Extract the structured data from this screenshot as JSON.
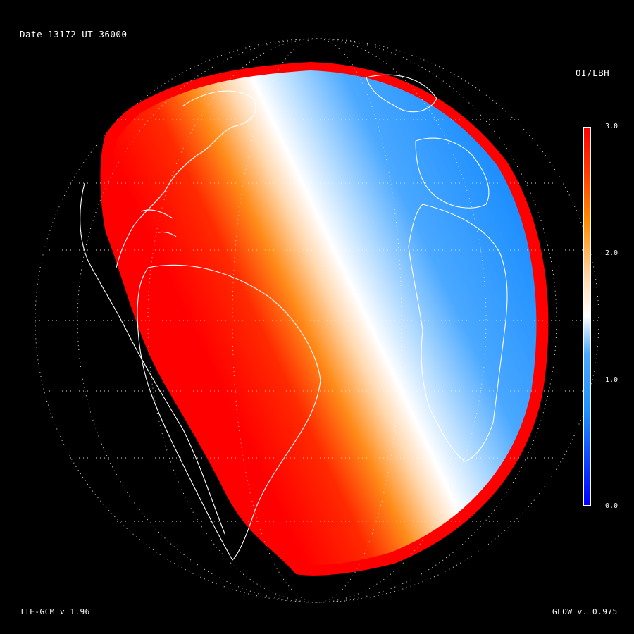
{
  "header": {
    "date_label": "Date 13172  UT 36000",
    "quantity_label": "OI/LBH"
  },
  "footer": {
    "model_version": "TIE-GCM v 1.96",
    "glow_version": "GLOW v. 0.975"
  },
  "colorbar": {
    "min": 0.0,
    "max": 3.0,
    "tick_labels": [
      "3.0",
      "2.0",
      "1.0",
      "0.0"
    ],
    "tick_values": [
      3.0,
      2.0,
      1.0,
      0.0
    ],
    "colors": {
      "low": "#0000ff",
      "mid_low": "#1e90ff",
      "mid": "#ffffff",
      "mid_high": "#ff8c00",
      "high": "#ff0000"
    }
  },
  "map": {
    "projection": "orthographic globe",
    "grid": "dotted latitude/longitude lines",
    "coastlines_color": "#ffffff",
    "night_side_color": "#000000"
  }
}
